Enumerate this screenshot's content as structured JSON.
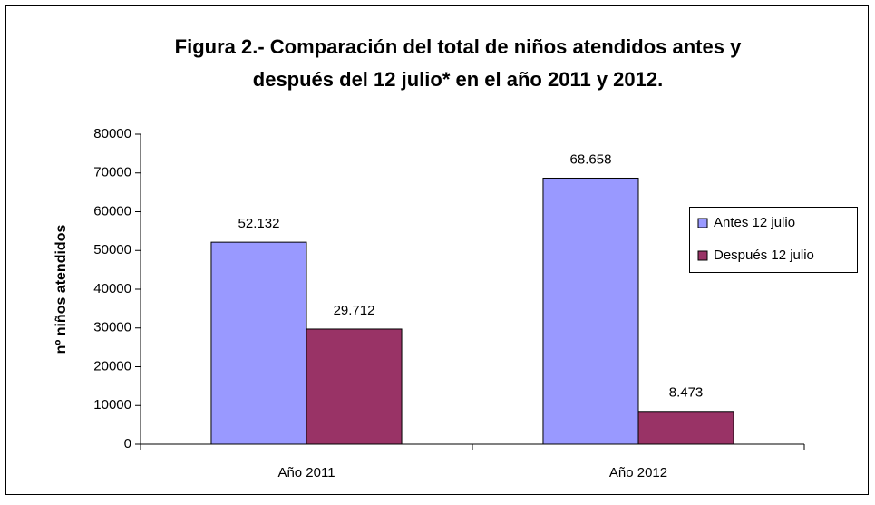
{
  "chart_data": {
    "type": "bar",
    "title": [
      "Figura 2.- Comparación del total de niños atendidos antes y",
      "después del 12 julio* en el año 2011 y 2012."
    ],
    "ylabel": "nº niños atendidos",
    "categories": [
      "Año 2011",
      "Año 2012"
    ],
    "series": [
      {
        "name": "Antes 12 julio",
        "color": "#9999ff",
        "values": [
          52132,
          68658
        ],
        "value_labels": [
          "52.132",
          "68.658"
        ]
      },
      {
        "name": "Después 12 julio",
        "color": "#993366",
        "values": [
          29712,
          8473
        ],
        "value_labels": [
          "29.712",
          "8.473"
        ]
      }
    ],
    "ylim": [
      0,
      80000
    ],
    "yticks": [
      0,
      10000,
      20000,
      30000,
      40000,
      50000,
      60000,
      70000,
      80000
    ],
    "legend": "right"
  }
}
